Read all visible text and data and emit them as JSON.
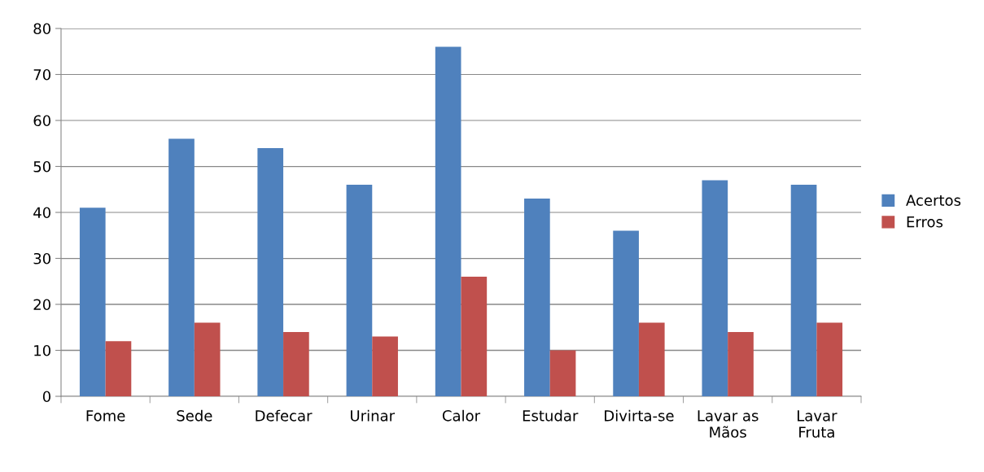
{
  "chart_data": {
    "type": "bar",
    "categories": [
      "Fome",
      "Sede",
      "Defecar",
      "Urinar",
      "Calor",
      "Estudar",
      "Divirta-se",
      "Lavar as\nMãos",
      "Lavar\nFruta"
    ],
    "series": [
      {
        "name": "Acertos",
        "color": "#4f81bd",
        "values": [
          41,
          56,
          54,
          46,
          76,
          43,
          36,
          47,
          46
        ]
      },
      {
        "name": "Erros",
        "color": "#c0504d",
        "values": [
          12,
          16,
          14,
          13,
          26,
          10,
          16,
          14,
          16
        ]
      }
    ],
    "ylim": [
      0,
      80
    ],
    "yticks": [
      0,
      10,
      20,
      30,
      40,
      50,
      60,
      70,
      80
    ],
    "grid": "y",
    "legend": "right"
  }
}
